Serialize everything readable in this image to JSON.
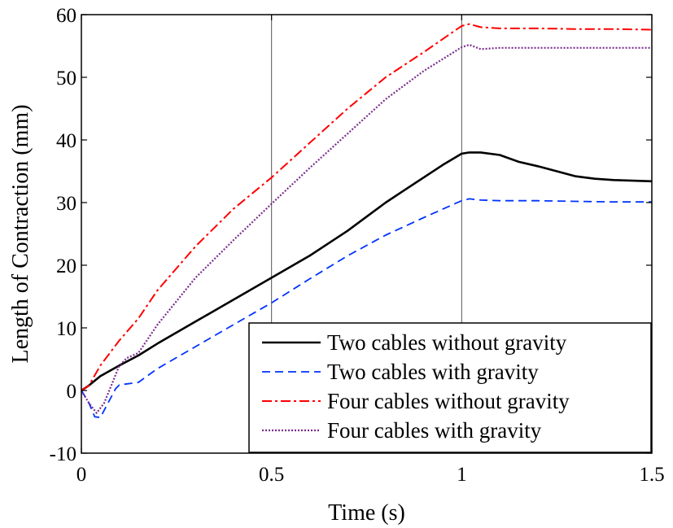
{
  "chart_data": {
    "type": "line",
    "title": "",
    "xlabel": "Time (s)",
    "ylabel": "Length of Contraction (mm)",
    "xlim": [
      0,
      1.5
    ],
    "ylim": [
      -10,
      60
    ],
    "x_ticks": [
      0,
      0.5,
      1,
      1.5
    ],
    "x_tick_labels": [
      "0",
      "0.5",
      "1",
      "1.5"
    ],
    "y_ticks": [
      -10,
      0,
      10,
      20,
      30,
      40,
      50,
      60
    ],
    "y_tick_labels": [
      "-10",
      "0",
      "10",
      "20",
      "30",
      "40",
      "50",
      "60"
    ],
    "grid": {
      "x": [
        0.5,
        1.0
      ],
      "y": []
    },
    "legend_position": "bottom-right",
    "series": [
      {
        "name": "Two cables without gravity",
        "color": "#000000",
        "dash": "solid",
        "points": [
          [
            0,
            0
          ],
          [
            0.02,
            0.8
          ],
          [
            0.05,
            2.3
          ],
          [
            0.1,
            4
          ],
          [
            0.15,
            5.6
          ],
          [
            0.2,
            7.5
          ],
          [
            0.3,
            11
          ],
          [
            0.4,
            14.5
          ],
          [
            0.5,
            18
          ],
          [
            0.6,
            21.5
          ],
          [
            0.7,
            25.5
          ],
          [
            0.8,
            30
          ],
          [
            0.85,
            32
          ],
          [
            0.9,
            34
          ],
          [
            0.95,
            36
          ],
          [
            1.0,
            37.8
          ],
          [
            1.02,
            38
          ],
          [
            1.05,
            38
          ],
          [
            1.1,
            37.6
          ],
          [
            1.15,
            36.5
          ],
          [
            1.2,
            35.8
          ],
          [
            1.25,
            35
          ],
          [
            1.3,
            34.2
          ],
          [
            1.35,
            33.8
          ],
          [
            1.4,
            33.6
          ],
          [
            1.5,
            33.4
          ]
        ]
      },
      {
        "name": "Two cables with gravity",
        "color": "#0033ff",
        "dash": "dashed",
        "points": [
          [
            0,
            0
          ],
          [
            0.02,
            -2
          ],
          [
            0.035,
            -4.2
          ],
          [
            0.05,
            -4.3
          ],
          [
            0.07,
            -2
          ],
          [
            0.09,
            0.3
          ],
          [
            0.1,
            0.9
          ],
          [
            0.15,
            1.3
          ],
          [
            0.2,
            3.5
          ],
          [
            0.3,
            7
          ],
          [
            0.4,
            10.5
          ],
          [
            0.5,
            14
          ],
          [
            0.6,
            17.8
          ],
          [
            0.7,
            21.5
          ],
          [
            0.8,
            24.8
          ],
          [
            0.9,
            27.6
          ],
          [
            1.0,
            30.3
          ],
          [
            1.02,
            30.6
          ],
          [
            1.05,
            30.4
          ],
          [
            1.1,
            30.3
          ],
          [
            1.2,
            30.3
          ],
          [
            1.3,
            30.2
          ],
          [
            1.4,
            30.1
          ],
          [
            1.5,
            30.1
          ]
        ]
      },
      {
        "name": "Four cables without gravity",
        "color": "#ff0000",
        "dash": "dash-dot",
        "points": [
          [
            0,
            0
          ],
          [
            0.02,
            0.8
          ],
          [
            0.05,
            4
          ],
          [
            0.1,
            8
          ],
          [
            0.15,
            11.5
          ],
          [
            0.2,
            16
          ],
          [
            0.3,
            23
          ],
          [
            0.4,
            29
          ],
          [
            0.5,
            34
          ],
          [
            0.6,
            39.5
          ],
          [
            0.7,
            45
          ],
          [
            0.8,
            50
          ],
          [
            0.9,
            54
          ],
          [
            1.0,
            58.2
          ],
          [
            1.02,
            58.5
          ],
          [
            1.05,
            58
          ],
          [
            1.1,
            57.8
          ],
          [
            1.2,
            57.8
          ],
          [
            1.3,
            57.7
          ],
          [
            1.4,
            57.7
          ],
          [
            1.5,
            57.6
          ]
        ]
      },
      {
        "name": "Four cables with gravity",
        "color": "#7b2d8e",
        "dash": "dotted",
        "points": [
          [
            0,
            0
          ],
          [
            0.02,
            -2
          ],
          [
            0.04,
            -3.6
          ],
          [
            0.06,
            -2
          ],
          [
            0.08,
            1
          ],
          [
            0.1,
            4
          ],
          [
            0.12,
            5.2
          ],
          [
            0.15,
            6
          ],
          [
            0.2,
            10.5
          ],
          [
            0.3,
            18
          ],
          [
            0.4,
            24
          ],
          [
            0.5,
            29.8
          ],
          [
            0.6,
            35.5
          ],
          [
            0.7,
            41
          ],
          [
            0.8,
            46.5
          ],
          [
            0.9,
            51
          ],
          [
            1.0,
            54.8
          ],
          [
            1.02,
            55.2
          ],
          [
            1.05,
            54.5
          ],
          [
            1.1,
            54.7
          ],
          [
            1.2,
            54.7
          ],
          [
            1.3,
            54.7
          ],
          [
            1.4,
            54.7
          ],
          [
            1.5,
            54.7
          ]
        ]
      }
    ]
  }
}
